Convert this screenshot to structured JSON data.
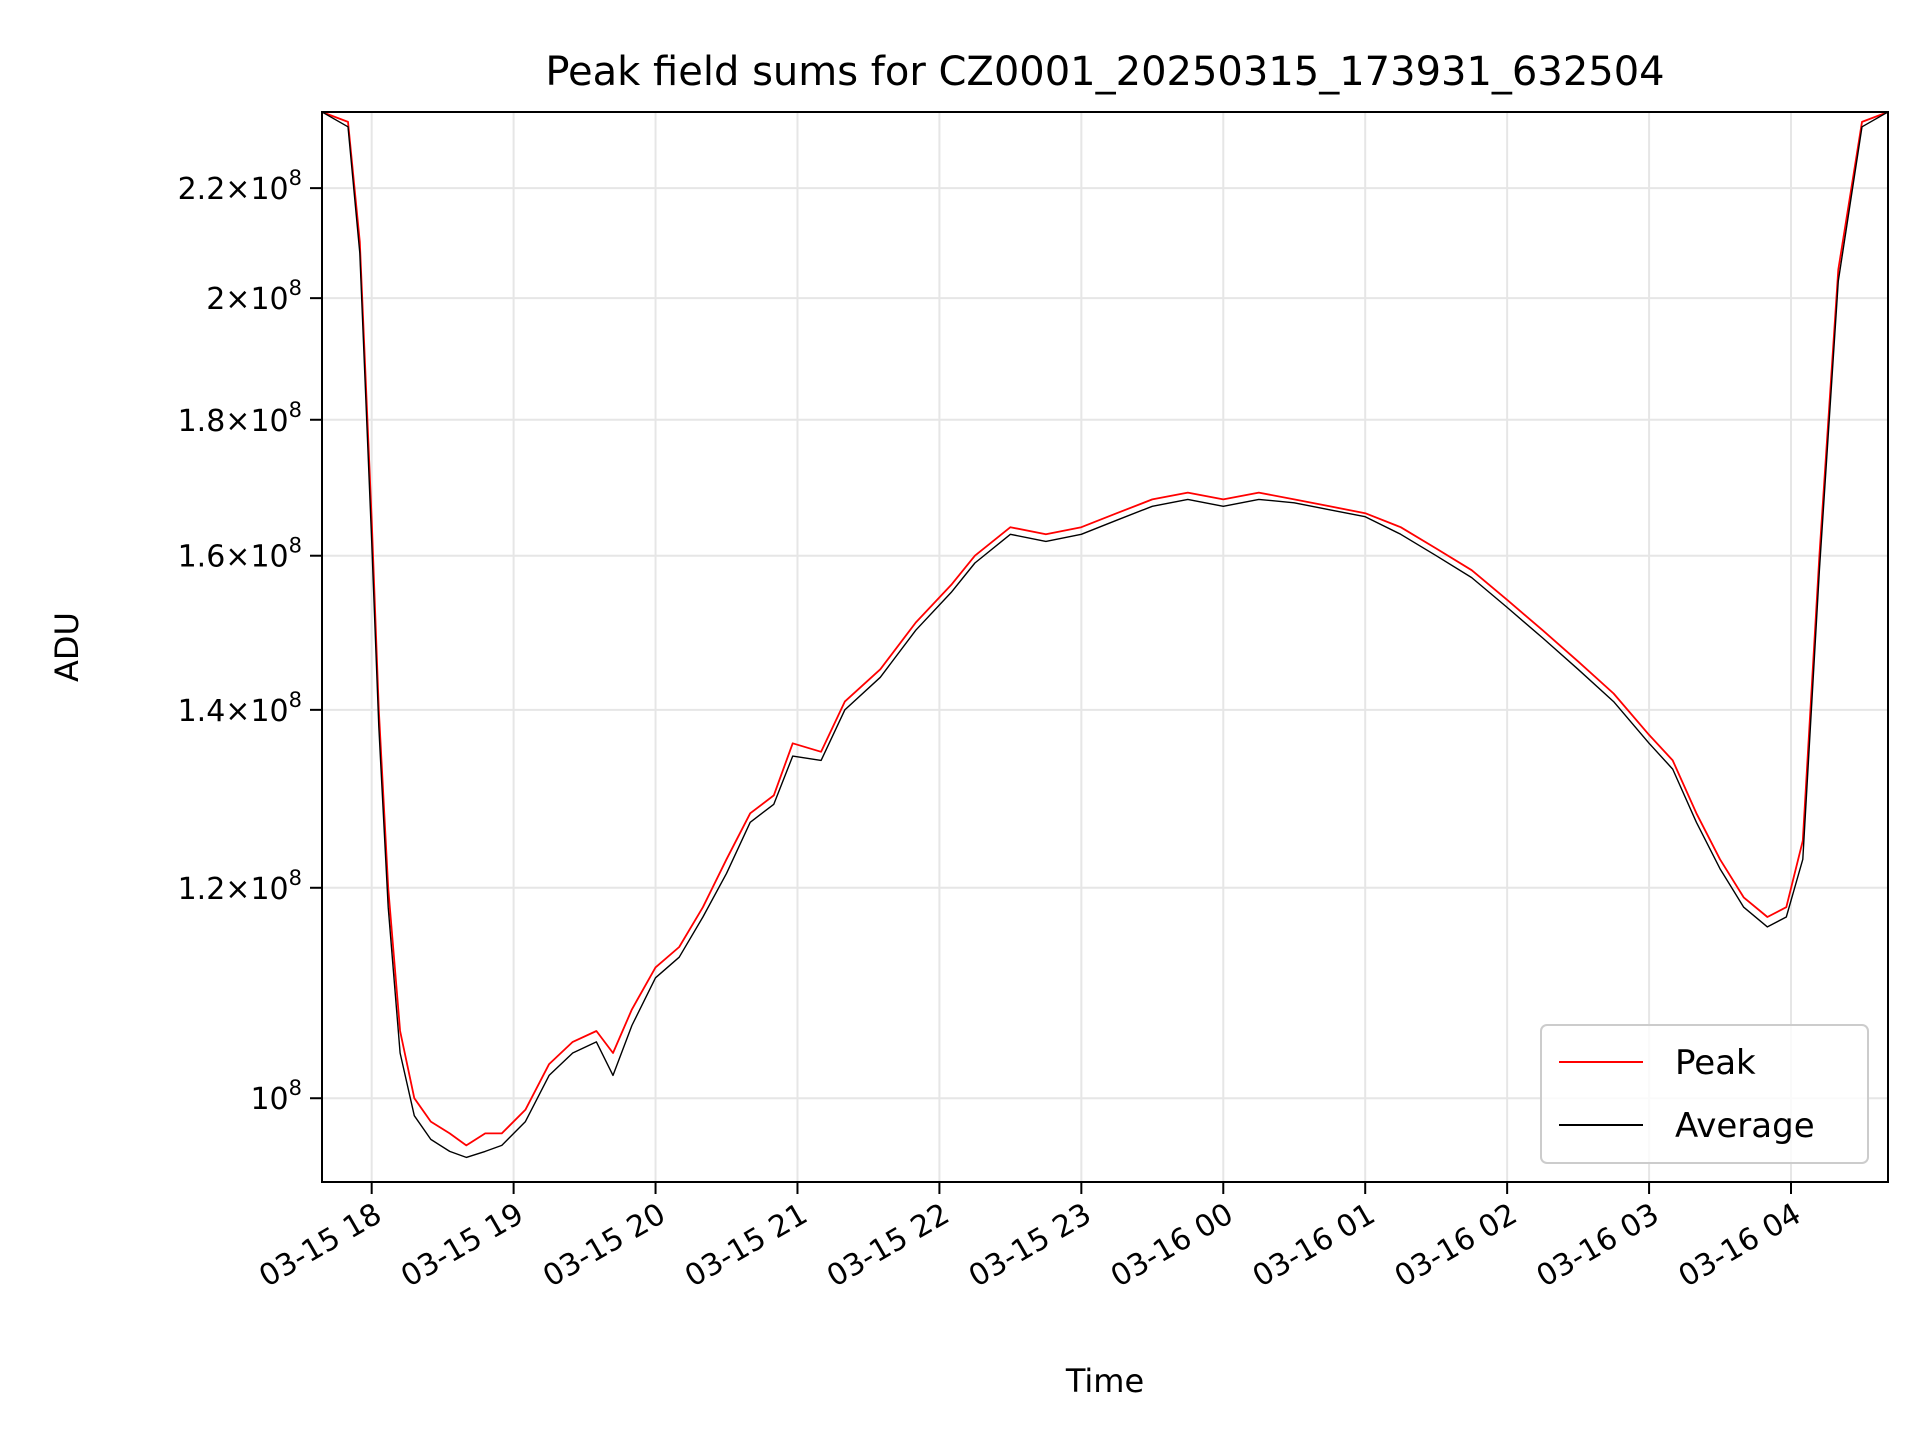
{
  "chart_data": {
    "type": "line",
    "title": "Peak field sums for CZ0001_20250315_173931_632504",
    "xlabel": "Time",
    "ylabel": "ADU",
    "y_scale": "log",
    "ylim": [
      93000000,
      235000000
    ],
    "xlim": [
      "03-15 17:39",
      "03-16 04:41"
    ],
    "grid": true,
    "legend_position": "lower-right",
    "x_ticks": [
      {
        "value": "03-15 18:00",
        "label": "03-15 18"
      },
      {
        "value": "03-15 19:00",
        "label": "03-15 19"
      },
      {
        "value": "03-15 20:00",
        "label": "03-15 20"
      },
      {
        "value": "03-15 21:00",
        "label": "03-15 21"
      },
      {
        "value": "03-15 22:00",
        "label": "03-15 22"
      },
      {
        "value": "03-15 23:00",
        "label": "03-15 23"
      },
      {
        "value": "03-16 00:00",
        "label": "03-16 00"
      },
      {
        "value": "03-16 01:00",
        "label": "03-16 01"
      },
      {
        "value": "03-16 02:00",
        "label": "03-16 02"
      },
      {
        "value": "03-16 03:00",
        "label": "03-16 03"
      },
      {
        "value": "03-16 04:00",
        "label": "03-16 04"
      }
    ],
    "y_ticks": [
      {
        "value": 100000000,
        "mantissa": "",
        "exponent": "8",
        "base": "10"
      },
      {
        "value": 120000000,
        "mantissa": "1.2",
        "exponent": "8",
        "base": "10"
      },
      {
        "value": 140000000,
        "mantissa": "1.4",
        "exponent": "8",
        "base": "10"
      },
      {
        "value": 160000000,
        "mantissa": "1.6",
        "exponent": "8",
        "base": "10"
      },
      {
        "value": 180000000,
        "mantissa": "1.8",
        "exponent": "8",
        "base": "10"
      },
      {
        "value": 200000000,
        "mantissa": "2",
        "exponent": "8",
        "base": "10"
      },
      {
        "value": 220000000,
        "mantissa": "2.2",
        "exponent": "8",
        "base": "10"
      }
    ],
    "series": [
      {
        "name": "Peak",
        "color": "#ff0000",
        "x": [
          "03-15 17:39",
          "03-15 17:50",
          "03-15 17:55",
          "03-15 18:00",
          "03-15 18:03",
          "03-15 18:07",
          "03-15 18:12",
          "03-15 18:18",
          "03-15 18:25",
          "03-15 18:33",
          "03-15 18:40",
          "03-15 18:48",
          "03-15 18:55",
          "03-15 19:05",
          "03-15 19:15",
          "03-15 19:25",
          "03-15 19:35",
          "03-15 19:42",
          "03-15 19:50",
          "03-15 20:00",
          "03-15 20:10",
          "03-15 20:20",
          "03-15 20:30",
          "03-15 20:40",
          "03-15 20:50",
          "03-15 20:58",
          "03-15 21:10",
          "03-15 21:20",
          "03-15 21:35",
          "03-15 21:50",
          "03-15 22:05",
          "03-15 22:15",
          "03-15 22:30",
          "03-15 22:45",
          "03-15 23:00",
          "03-15 23:15",
          "03-15 23:30",
          "03-15 23:45",
          "03-16 00:00",
          "03-16 00:15",
          "03-16 00:30",
          "03-16 00:45",
          "03-16 01:00",
          "03-16 01:15",
          "03-16 01:30",
          "03-16 01:45",
          "03-16 02:00",
          "03-16 02:15",
          "03-16 02:30",
          "03-16 02:45",
          "03-16 03:00",
          "03-16 03:10",
          "03-16 03:20",
          "03-16 03:30",
          "03-16 03:40",
          "03-16 03:50",
          "03-16 03:58",
          "03-16 04:05",
          "03-16 04:12",
          "03-16 04:20",
          "03-16 04:30",
          "03-16 04:41"
        ],
        "values": [
          235000000,
          233000000,
          210000000,
          165000000,
          140000000,
          120000000,
          106000000,
          100000000,
          98000000,
          97000000,
          96000000,
          97000000,
          97000000,
          99000000,
          103000000,
          105000000,
          106000000,
          104000000,
          108000000,
          112000000,
          114000000,
          118000000,
          123000000,
          128000000,
          130000000,
          136000000,
          135000000,
          141000000,
          145000000,
          151000000,
          156000000,
          160000000,
          164000000,
          163000000,
          164000000,
          166000000,
          168000000,
          169000000,
          168000000,
          169000000,
          168000000,
          167000000,
          166000000,
          164000000,
          161000000,
          158000000,
          154000000,
          150000000,
          146000000,
          142000000,
          137000000,
          134000000,
          128000000,
          123000000,
          119000000,
          117000000,
          118000000,
          125000000,
          160000000,
          205000000,
          233000000,
          235000000
        ]
      },
      {
        "name": "Average",
        "color": "#000000",
        "x": [
          "03-15 17:39",
          "03-15 17:50",
          "03-15 17:55",
          "03-15 18:00",
          "03-15 18:03",
          "03-15 18:07",
          "03-15 18:12",
          "03-15 18:18",
          "03-15 18:25",
          "03-15 18:33",
          "03-15 18:40",
          "03-15 18:48",
          "03-15 18:55",
          "03-15 19:05",
          "03-15 19:15",
          "03-15 19:25",
          "03-15 19:35",
          "03-15 19:42",
          "03-15 19:50",
          "03-15 20:00",
          "03-15 20:10",
          "03-15 20:20",
          "03-15 20:30",
          "03-15 20:40",
          "03-15 20:50",
          "03-15 20:58",
          "03-15 21:10",
          "03-15 21:20",
          "03-15 21:35",
          "03-15 21:50",
          "03-15 22:05",
          "03-15 22:15",
          "03-15 22:30",
          "03-15 22:45",
          "03-15 23:00",
          "03-15 23:15",
          "03-15 23:30",
          "03-15 23:45",
          "03-16 00:00",
          "03-16 00:15",
          "03-16 00:30",
          "03-16 00:45",
          "03-16 01:00",
          "03-16 01:15",
          "03-16 01:30",
          "03-16 01:45",
          "03-16 02:00",
          "03-16 02:15",
          "03-16 02:30",
          "03-16 02:45",
          "03-16 03:00",
          "03-16 03:10",
          "03-16 03:20",
          "03-16 03:30",
          "03-16 03:40",
          "03-16 03:50",
          "03-16 03:58",
          "03-16 04:05",
          "03-16 04:12",
          "03-16 04:20",
          "03-16 04:30",
          "03-16 04:41"
        ],
        "values": [
          235000000,
          232000000,
          208000000,
          162000000,
          138000000,
          118000000,
          104000000,
          98500000,
          96500000,
          95500000,
          95000000,
          95500000,
          96000000,
          98000000,
          102000000,
          104000000,
          105000000,
          102000000,
          106500000,
          111000000,
          113000000,
          117000000,
          121500000,
          127000000,
          129000000,
          134500000,
          134000000,
          140000000,
          144000000,
          150000000,
          155000000,
          159000000,
          163000000,
          162000000,
          163000000,
          165000000,
          167000000,
          168000000,
          167000000,
          168000000,
          167500000,
          166500000,
          165500000,
          163000000,
          160000000,
          157000000,
          153000000,
          149000000,
          145000000,
          141000000,
          136000000,
          133000000,
          127000000,
          122000000,
          118000000,
          116000000,
          117000000,
          123000000,
          158000000,
          203000000,
          232000000,
          235000000
        ]
      }
    ]
  }
}
